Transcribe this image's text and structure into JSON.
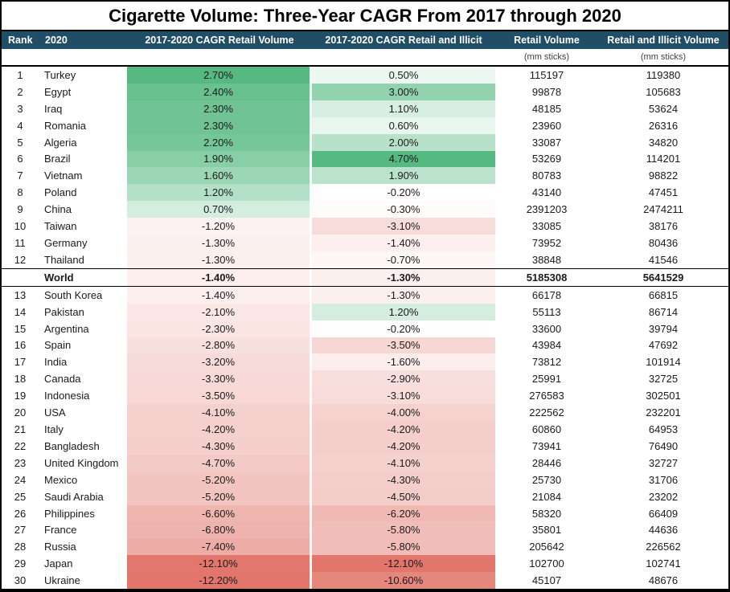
{
  "title": "Cigarette Volume: Three-Year CAGR From 2017 through 2020",
  "header": {
    "rank": "Rank",
    "year": "2020",
    "cagr_retail": "2017-2020 CAGR Retail Volume",
    "cagr_illicit": "2017-2020 CAGR Retail and Illicit",
    "retail": "Retail Volume",
    "illicit": "Retail and Illicit Volume"
  },
  "subheader": {
    "retail_units": "(mm sticks)",
    "illicit_units": "(mm sticks)"
  },
  "colors": {
    "header_bg": "#1f4e66",
    "header_text": "#ffffff",
    "heatmap_green_max": "#56b982",
    "heatmap_red_max": "#e2766c",
    "heatmap_midpoint": "#ffffff",
    "frame_border": "#000000"
  },
  "chart_data": {
    "type": "table",
    "title": "Cigarette Volume: Three-Year CAGR From 2017 through 2020",
    "columns": [
      "Rank",
      "2020",
      "2017-2020 CAGR Retail Volume",
      "2017-2020 CAGR Retail and Illicit",
      "Retail Volume (mm sticks)",
      "Retail and Illicit Volume (mm sticks)"
    ],
    "heatmap_note": "CAGR columns use red-white-green scale, white at 0, per-column min/max",
    "rows": [
      {
        "rank": "1",
        "country": "Turkey",
        "cagr_retail": 2.7,
        "cagr_illicit": 0.5,
        "retail": 115197,
        "illicit": 119380,
        "bold": false
      },
      {
        "rank": "2",
        "country": "Egypt",
        "cagr_retail": 2.4,
        "cagr_illicit": 3.0,
        "retail": 99878,
        "illicit": 105683,
        "bold": false
      },
      {
        "rank": "3",
        "country": "Iraq",
        "cagr_retail": 2.3,
        "cagr_illicit": 1.1,
        "retail": 48185,
        "illicit": 53624,
        "bold": false
      },
      {
        "rank": "4",
        "country": "Romania",
        "cagr_retail": 2.3,
        "cagr_illicit": 0.6,
        "retail": 23960,
        "illicit": 26316,
        "bold": false
      },
      {
        "rank": "5",
        "country": "Algeria",
        "cagr_retail": 2.2,
        "cagr_illicit": 2.0,
        "retail": 33087,
        "illicit": 34820,
        "bold": false
      },
      {
        "rank": "6",
        "country": "Brazil",
        "cagr_retail": 1.9,
        "cagr_illicit": 4.7,
        "retail": 53269,
        "illicit": 114201,
        "bold": false
      },
      {
        "rank": "7",
        "country": "Vietnam",
        "cagr_retail": 1.6,
        "cagr_illicit": 1.9,
        "retail": 80783,
        "illicit": 98822,
        "bold": false
      },
      {
        "rank": "8",
        "country": "Poland",
        "cagr_retail": 1.2,
        "cagr_illicit": -0.2,
        "retail": 43140,
        "illicit": 47451,
        "bold": false
      },
      {
        "rank": "9",
        "country": "China",
        "cagr_retail": 0.7,
        "cagr_illicit": -0.3,
        "retail": 2391203,
        "illicit": 2474211,
        "bold": false
      },
      {
        "rank": "10",
        "country": "Taiwan",
        "cagr_retail": -1.2,
        "cagr_illicit": -3.1,
        "retail": 33085,
        "illicit": 38176,
        "bold": false
      },
      {
        "rank": "11",
        "country": "Germany",
        "cagr_retail": -1.3,
        "cagr_illicit": -1.4,
        "retail": 73952,
        "illicit": 80436,
        "bold": false
      },
      {
        "rank": "12",
        "country": "Thailand",
        "cagr_retail": -1.3,
        "cagr_illicit": -0.7,
        "retail": 38848,
        "illicit": 41546,
        "bold": false
      },
      {
        "rank": "",
        "country": "World",
        "cagr_retail": -1.4,
        "cagr_illicit": -1.3,
        "retail": 5185308,
        "illicit": 5641529,
        "bold": true
      },
      {
        "rank": "13",
        "country": "South Korea",
        "cagr_retail": -1.4,
        "cagr_illicit": -1.3,
        "retail": 66178,
        "illicit": 66815,
        "bold": false
      },
      {
        "rank": "14",
        "country": "Pakistan",
        "cagr_retail": -2.1,
        "cagr_illicit": 1.2,
        "retail": 55113,
        "illicit": 86714,
        "bold": false
      },
      {
        "rank": "15",
        "country": "Argentina",
        "cagr_retail": -2.3,
        "cagr_illicit": -0.2,
        "retail": 33600,
        "illicit": 39794,
        "bold": false
      },
      {
        "rank": "16",
        "country": "Spain",
        "cagr_retail": -2.8,
        "cagr_illicit": -3.5,
        "retail": 43984,
        "illicit": 47692,
        "bold": false
      },
      {
        "rank": "17",
        "country": "India",
        "cagr_retail": -3.2,
        "cagr_illicit": -1.6,
        "retail": 73812,
        "illicit": 101914,
        "bold": false
      },
      {
        "rank": "18",
        "country": "Canada",
        "cagr_retail": -3.3,
        "cagr_illicit": -2.9,
        "retail": 25991,
        "illicit": 32725,
        "bold": false
      },
      {
        "rank": "19",
        "country": "Indonesia",
        "cagr_retail": -3.5,
        "cagr_illicit": -3.1,
        "retail": 276583,
        "illicit": 302501,
        "bold": false
      },
      {
        "rank": "20",
        "country": "USA",
        "cagr_retail": -4.1,
        "cagr_illicit": -4.0,
        "retail": 222562,
        "illicit": 232201,
        "bold": false
      },
      {
        "rank": "21",
        "country": "Italy",
        "cagr_retail": -4.2,
        "cagr_illicit": -4.2,
        "retail": 60860,
        "illicit": 64953,
        "bold": false
      },
      {
        "rank": "22",
        "country": "Bangladesh",
        "cagr_retail": -4.3,
        "cagr_illicit": -4.2,
        "retail": 73941,
        "illicit": 76490,
        "bold": false
      },
      {
        "rank": "23",
        "country": "United Kingdom",
        "cagr_retail": -4.7,
        "cagr_illicit": -4.1,
        "retail": 28446,
        "illicit": 32727,
        "bold": false
      },
      {
        "rank": "24",
        "country": "Mexico",
        "cagr_retail": -5.2,
        "cagr_illicit": -4.3,
        "retail": 25730,
        "illicit": 31706,
        "bold": false
      },
      {
        "rank": "25",
        "country": "Saudi Arabia",
        "cagr_retail": -5.2,
        "cagr_illicit": -4.5,
        "retail": 21084,
        "illicit": 23202,
        "bold": false
      },
      {
        "rank": "26",
        "country": "Philippines",
        "cagr_retail": -6.6,
        "cagr_illicit": -6.2,
        "retail": 58320,
        "illicit": 66409,
        "bold": false
      },
      {
        "rank": "27",
        "country": "France",
        "cagr_retail": -6.8,
        "cagr_illicit": -5.8,
        "retail": 35801,
        "illicit": 44636,
        "bold": false
      },
      {
        "rank": "28",
        "country": "Russia",
        "cagr_retail": -7.4,
        "cagr_illicit": -5.8,
        "retail": 205642,
        "illicit": 226562,
        "bold": false
      },
      {
        "rank": "29",
        "country": "Japan",
        "cagr_retail": -12.1,
        "cagr_illicit": -12.1,
        "retail": 102700,
        "illicit": 102741,
        "bold": false
      },
      {
        "rank": "30",
        "country": "Ukraine",
        "cagr_retail": -12.2,
        "cagr_illicit": -10.6,
        "retail": 45107,
        "illicit": 48676,
        "bold": false
      }
    ]
  }
}
